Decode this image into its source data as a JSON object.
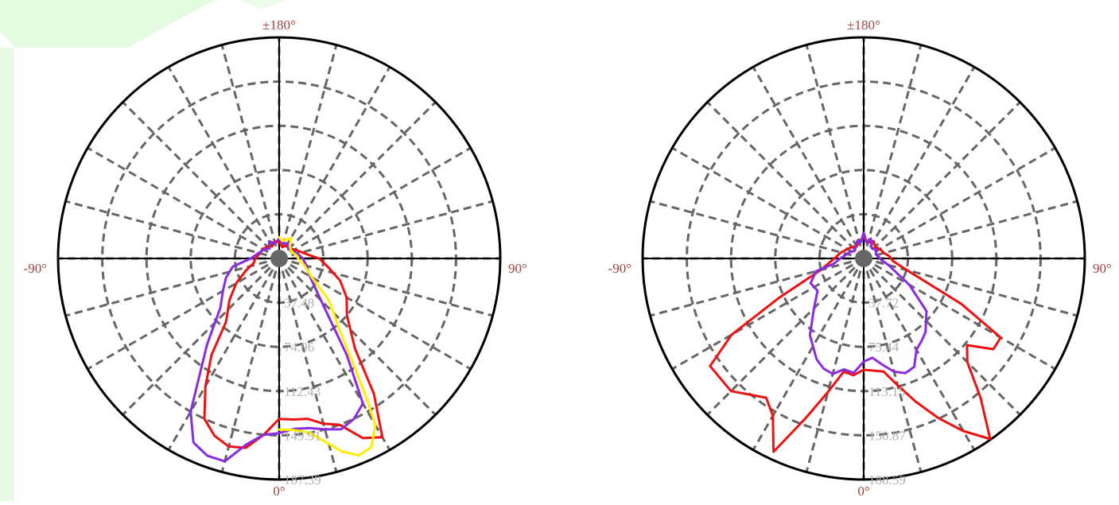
{
  "colors": {
    "angle_label": "#a0423f",
    "radial_label": "#b0b0b0",
    "grid": "#666666",
    "outline": "#000000",
    "center_dot": "#666666",
    "red": "#ee1111",
    "purple": "#8a2be2",
    "yellow": "#ffee00",
    "decor_green": "#8fe08a"
  },
  "chart_data": [
    {
      "type": "polar-line",
      "angle_labels": {
        "top": "±180°",
        "left": "-90°",
        "right": "90°",
        "bottom": "0°"
      },
      "angle_direction": "0° at bottom, ±180° at top, 90° at right",
      "rmax": 187.39,
      "radial_ticks": [
        37.48,
        74.96,
        112.43,
        149.91,
        187.39
      ],
      "radial_tick_labels": [
        "37.48",
        "74.96",
        "112.43",
        "149.91",
        "187.39"
      ],
      "grid": true,
      "series": [
        {
          "color": "#ee1111",
          "points": [
            [
              180,
              14
            ],
            [
              165,
              10
            ],
            [
              150,
              13
            ],
            [
              135,
              12
            ],
            [
              120,
              15
            ],
            [
              105,
              20
            ],
            [
              95,
              27
            ],
            [
              90,
              34
            ],
            [
              80,
              42
            ],
            [
              70,
              55
            ],
            [
              60,
              66
            ],
            [
              50,
              75
            ],
            [
              40,
              100
            ],
            [
              35,
              140
            ],
            [
              30,
              175
            ],
            [
              25,
              168
            ],
            [
              20,
              150
            ],
            [
              15,
              145
            ],
            [
              10,
              138
            ],
            [
              5,
              137
            ],
            [
              0,
              136
            ],
            [
              -5,
              150
            ],
            [
              -10,
              163
            ],
            [
              -15,
              165
            ],
            [
              -20,
              160
            ],
            [
              -25,
              150
            ],
            [
              -30,
              125
            ],
            [
              -35,
              100
            ],
            [
              -40,
              70
            ],
            [
              -50,
              55
            ],
            [
              -60,
              42
            ],
            [
              -70,
              30
            ],
            [
              -80,
              22
            ],
            [
              -90,
              20
            ],
            [
              -105,
              17
            ],
            [
              -120,
              16
            ],
            [
              -135,
              14
            ],
            [
              -150,
              12
            ],
            [
              -165,
              15
            ],
            [
              -180,
              14
            ]
          ]
        },
        {
          "color": "#8a2be2",
          "points": [
            [
              180,
              17
            ],
            [
              165,
              13
            ],
            [
              150,
              15
            ],
            [
              135,
              11
            ],
            [
              120,
              13
            ],
            [
              105,
              16
            ],
            [
              90,
              20
            ],
            [
              75,
              24
            ],
            [
              60,
              30
            ],
            [
              45,
              50
            ],
            [
              35,
              100
            ],
            [
              30,
              142
            ],
            [
              25,
              150
            ],
            [
              20,
              154
            ],
            [
              15,
              150
            ],
            [
              10,
              146
            ],
            [
              5,
              145
            ],
            [
              0,
              148
            ],
            [
              -5,
              150
            ],
            [
              -10,
              160
            ],
            [
              -15,
              178
            ],
            [
              -20,
              178
            ],
            [
              -25,
              172
            ],
            [
              -30,
              150
            ],
            [
              -40,
              95
            ],
            [
              -50,
              65
            ],
            [
              -60,
              55
            ],
            [
              -70,
              48
            ],
            [
              -80,
              40
            ],
            [
              -90,
              24
            ],
            [
              -105,
              18
            ],
            [
              -120,
              15
            ],
            [
              -135,
              12
            ],
            [
              -150,
              17
            ],
            [
              -165,
              13
            ],
            [
              -180,
              17
            ]
          ]
        },
        {
          "color": "#ffee00",
          "points": [
            [
              180,
              18
            ],
            [
              170,
              15
            ],
            [
              160,
              17
            ],
            [
              150,
              20
            ],
            [
              140,
              14
            ],
            [
              125,
              12
            ],
            [
              110,
              13
            ],
            [
              100,
              15
            ],
            [
              90,
              16
            ],
            [
              75,
              22
            ],
            [
              60,
              32
            ],
            [
              50,
              55
            ],
            [
              40,
              80
            ],
            [
              35,
              110
            ],
            [
              32,
              140
            ],
            [
              30,
              163
            ],
            [
              26,
              178
            ],
            [
              22,
              180
            ],
            [
              18,
              172
            ],
            [
              14,
              160
            ],
            [
              10,
              150
            ],
            [
              5,
              146
            ],
            [
              0,
              145
            ]
          ]
        }
      ]
    },
    {
      "type": "polar-line",
      "angle_labels": {
        "top": "±180°",
        "left": "-90°",
        "right": "90°",
        "bottom": "0°"
      },
      "angle_direction": "0° at bottom, ±180° at top, 90° at right",
      "rmax": 188.59,
      "radial_ticks": [
        37.72,
        75.44,
        113.15,
        150.87,
        188.59
      ],
      "radial_tick_labels": [
        "37.72",
        "75.44",
        "113.15",
        "150.87",
        "188.59"
      ],
      "grid": true,
      "series": [
        {
          "color": "#ee1111",
          "points": [
            [
              180,
              18
            ],
            [
              165,
              14
            ],
            [
              150,
              17
            ],
            [
              135,
              14
            ],
            [
              120,
              16
            ],
            [
              105,
              18
            ],
            [
              95,
              22
            ],
            [
              85,
              25
            ],
            [
              75,
              38
            ],
            [
              65,
              92
            ],
            [
              60,
              135
            ],
            [
              55,
              135
            ],
            [
              50,
              115
            ],
            [
              45,
              125
            ],
            [
              40,
              155
            ],
            [
              35,
              188
            ],
            [
              30,
              170
            ],
            [
              25,
              150
            ],
            [
              20,
              130
            ],
            [
              15,
              112
            ],
            [
              10,
              98
            ],
            [
              5,
              96
            ],
            [
              0,
              95
            ],
            [
              -5,
              100
            ],
            [
              -10,
              98
            ],
            [
              -15,
              118
            ],
            [
              -20,
              145
            ],
            [
              -25,
              182
            ],
            [
              -30,
              155
            ],
            [
              -35,
              145
            ],
            [
              -45,
              160
            ],
            [
              -55,
              160
            ],
            [
              -60,
              130
            ],
            [
              -65,
              80
            ],
            [
              -75,
              38
            ],
            [
              -90,
              25
            ],
            [
              -105,
              20
            ],
            [
              -120,
              16
            ],
            [
              -135,
              14
            ],
            [
              -150,
              12
            ],
            [
              -165,
              15
            ],
            [
              -180,
              18
            ]
          ]
        },
        {
          "color": "#8a2be2",
          "points": [
            [
              180,
              22
            ],
            [
              170,
              14
            ],
            [
              160,
              18
            ],
            [
              150,
              13
            ],
            [
              140,
              11
            ],
            [
              125,
              13
            ],
            [
              110,
              11
            ],
            [
              95,
              13
            ],
            [
              85,
              15
            ],
            [
              75,
              22
            ],
            [
              60,
              45
            ],
            [
              50,
              70
            ],
            [
              40,
              82
            ],
            [
              35,
              86
            ],
            [
              30,
              90
            ],
            [
              25,
              102
            ],
            [
              20,
              104
            ],
            [
              15,
              100
            ],
            [
              10,
              92
            ],
            [
              5,
              85
            ],
            [
              0,
              88
            ],
            [
              -5,
              98
            ],
            [
              -10,
              96
            ],
            [
              -15,
              102
            ],
            [
              -20,
              100
            ],
            [
              -25,
              95
            ],
            [
              -35,
              80
            ],
            [
              -45,
              60
            ],
            [
              -55,
              48
            ],
            [
              -65,
              50
            ],
            [
              -75,
              42
            ],
            [
              -80,
              26
            ],
            [
              -90,
              20
            ],
            [
              -100,
              16
            ],
            [
              -115,
              13
            ],
            [
              -130,
              10
            ],
            [
              -145,
              12
            ],
            [
              -160,
              16
            ],
            [
              -170,
              14
            ],
            [
              -180,
              22
            ]
          ]
        }
      ]
    }
  ]
}
